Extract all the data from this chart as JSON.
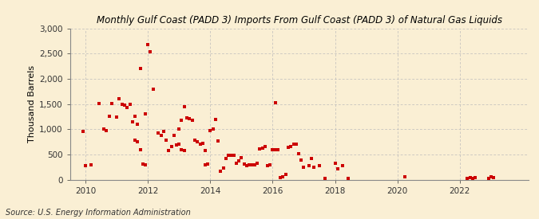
{
  "title": "Monthly Gulf Coast (PADD 3) Imports From Gulf Coast (PADD 3) of Natural Gas Liquids",
  "ylabel": "Thousand Barrels",
  "source": "Source: U.S. Energy Information Administration",
  "background_color": "#faefd4",
  "marker_color": "#cc0000",
  "ylim": [
    0,
    3000
  ],
  "yticks": [
    0,
    500,
    1000,
    1500,
    2000,
    2500,
    3000
  ],
  "xlim": [
    2009.5,
    2024.2
  ],
  "xticks": [
    2010,
    2012,
    2014,
    2016,
    2018,
    2020,
    2022
  ],
  "data": [
    [
      2009.92,
      950
    ],
    [
      2010.0,
      270
    ],
    [
      2010.17,
      300
    ],
    [
      2010.42,
      1510
    ],
    [
      2010.58,
      1000
    ],
    [
      2010.67,
      980
    ],
    [
      2010.75,
      1260
    ],
    [
      2010.83,
      1510
    ],
    [
      2011.0,
      1240
    ],
    [
      2011.08,
      1610
    ],
    [
      2011.17,
      1500
    ],
    [
      2011.25,
      1480
    ],
    [
      2011.33,
      1430
    ],
    [
      2011.42,
      1500
    ],
    [
      2011.5,
      1140
    ],
    [
      2011.58,
      1260
    ],
    [
      2011.67,
      1100
    ],
    [
      2011.75,
      2200
    ],
    [
      2011.83,
      305
    ],
    [
      2011.92,
      300
    ],
    [
      2011.58,
      780
    ],
    [
      2011.67,
      750
    ],
    [
      2011.75,
      600
    ],
    [
      2011.92,
      1310
    ],
    [
      2012.0,
      2680
    ],
    [
      2012.08,
      2530
    ],
    [
      2012.17,
      1800
    ],
    [
      2012.33,
      920
    ],
    [
      2012.42,
      870
    ],
    [
      2012.5,
      950
    ],
    [
      2012.58,
      780
    ],
    [
      2012.67,
      580
    ],
    [
      2012.75,
      650
    ],
    [
      2012.83,
      870
    ],
    [
      2012.92,
      690
    ],
    [
      2013.0,
      710
    ],
    [
      2013.08,
      590
    ],
    [
      2013.17,
      580
    ],
    [
      2013.0,
      1000
    ],
    [
      2013.08,
      1180
    ],
    [
      2013.17,
      1440
    ],
    [
      2013.25,
      1220
    ],
    [
      2013.33,
      1210
    ],
    [
      2013.42,
      1180
    ],
    [
      2013.5,
      780
    ],
    [
      2013.58,
      750
    ],
    [
      2013.67,
      700
    ],
    [
      2013.75,
      720
    ],
    [
      2013.83,
      570
    ],
    [
      2013.83,
      300
    ],
    [
      2013.92,
      310
    ],
    [
      2014.0,
      970
    ],
    [
      2014.08,
      1000
    ],
    [
      2014.17,
      1190
    ],
    [
      2014.25,
      760
    ],
    [
      2014.33,
      170
    ],
    [
      2014.42,
      230
    ],
    [
      2014.5,
      420
    ],
    [
      2014.58,
      480
    ],
    [
      2014.67,
      490
    ],
    [
      2014.75,
      490
    ],
    [
      2014.83,
      330
    ],
    [
      2014.92,
      370
    ],
    [
      2015.0,
      440
    ],
    [
      2015.08,
      310
    ],
    [
      2015.17,
      280
    ],
    [
      2015.25,
      290
    ],
    [
      2015.33,
      290
    ],
    [
      2015.42,
      300
    ],
    [
      2015.5,
      330
    ],
    [
      2015.58,
      610
    ],
    [
      2015.67,
      620
    ],
    [
      2015.75,
      650
    ],
    [
      2015.83,
      270
    ],
    [
      2015.92,
      290
    ],
    [
      2016.0,
      590
    ],
    [
      2016.08,
      590
    ],
    [
      2016.17,
      590
    ],
    [
      2016.08,
      1530
    ],
    [
      2016.25,
      40
    ],
    [
      2016.33,
      50
    ],
    [
      2016.42,
      100
    ],
    [
      2016.5,
      640
    ],
    [
      2016.58,
      660
    ],
    [
      2016.67,
      700
    ],
    [
      2016.75,
      700
    ],
    [
      2016.83,
      510
    ],
    [
      2016.92,
      380
    ],
    [
      2017.0,
      250
    ],
    [
      2017.17,
      280
    ],
    [
      2017.25,
      420
    ],
    [
      2017.33,
      250
    ],
    [
      2017.5,
      280
    ],
    [
      2017.67,
      20
    ],
    [
      2018.0,
      320
    ],
    [
      2018.08,
      210
    ],
    [
      2018.25,
      270
    ],
    [
      2018.42,
      20
    ],
    [
      2020.25,
      50
    ],
    [
      2022.25,
      30
    ],
    [
      2022.33,
      40
    ],
    [
      2022.42,
      30
    ],
    [
      2022.5,
      40
    ],
    [
      2022.92,
      30
    ],
    [
      2023.0,
      50
    ],
    [
      2023.08,
      40
    ]
  ]
}
